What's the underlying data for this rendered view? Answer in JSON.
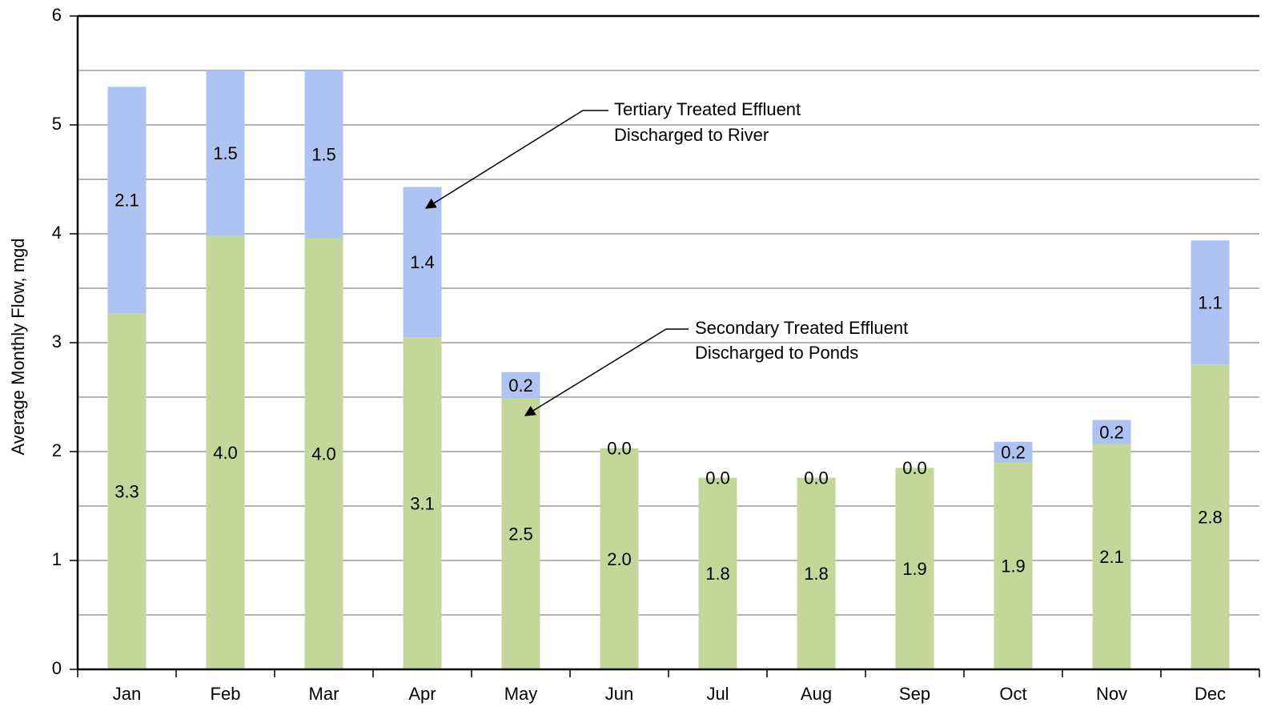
{
  "chart_data": {
    "type": "stacked_bar",
    "y_label": "Average Monthly Flow, mgd",
    "categories": [
      "Jan",
      "Feb",
      "Mar",
      "Apr",
      "May",
      "Jun",
      "Jul",
      "Aug",
      "Sep",
      "Oct",
      "Nov",
      "Dec"
    ],
    "series": [
      {
        "color": "#c4d79b",
        "values": [
          3.27,
          3.98,
          3.96,
          3.05,
          2.49,
          2.03,
          1.76,
          1.76,
          1.85,
          1.9,
          2.07,
          2.8
        ],
        "value_labels": [
          "3.3",
          "4.0",
          "4.0",
          "3.1",
          "2.5",
          "2.0",
          "1.8",
          "1.8",
          "1.9",
          "1.9",
          "2.1",
          "2.8"
        ]
      },
      {
        "color": "#adc4f2",
        "values": [
          2.08,
          1.52,
          1.54,
          1.38,
          0.24,
          0,
          0,
          0,
          0,
          0.19,
          0.22,
          1.14
        ],
        "value_labels": [
          "2.1",
          "1.5",
          "1.5",
          "1.4",
          "0.2",
          "0.0",
          "0.0",
          "0.0",
          "0.0",
          "0.2",
          "0.2",
          "1.1"
        ]
      }
    ],
    "ylim": [
      0,
      6
    ],
    "yticks": [
      0,
      1,
      2,
      3,
      4,
      5,
      6
    ],
    "minor_yticks": [
      0.5,
      1.5,
      2.5,
      3.5,
      4.5,
      5.5
    ],
    "grid": true,
    "annotations": [
      {
        "lines": [
          "Tertiary Treated Effluent",
          "Discharged to River"
        ]
      },
      {
        "lines": [
          "Secondary Treated Effluent",
          "Discharged to Ponds"
        ]
      }
    ]
  }
}
